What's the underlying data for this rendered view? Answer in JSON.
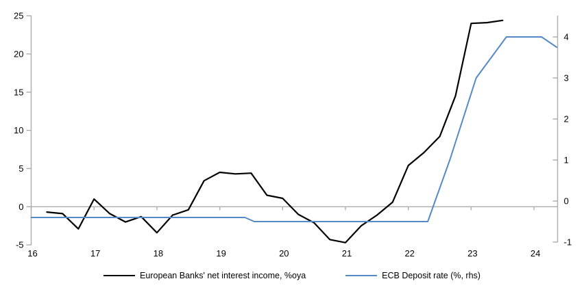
{
  "chart_data": {
    "type": "line",
    "title": "",
    "x_axis": {
      "tick_labels": [
        "16",
        "17",
        "18",
        "19",
        "20",
        "21",
        "22",
        "23",
        "24"
      ],
      "tick_values": [
        16,
        17,
        18,
        19,
        20,
        21,
        22,
        23,
        24
      ],
      "range": [
        16,
        24.38
      ]
    },
    "left_axis": {
      "tick_labels": [
        "25",
        "20",
        "15",
        "10",
        "5",
        "0",
        "-5"
      ],
      "tick_values": [
        25,
        20,
        15,
        10,
        5,
        0,
        -5
      ],
      "range": [
        -5,
        25
      ]
    },
    "right_axis": {
      "tick_labels": [
        "4",
        "3",
        "2",
        "1",
        "0",
        "-1"
      ],
      "tick_values": [
        4,
        3,
        2,
        1,
        0,
        -1
      ],
      "range": [
        -1,
        4.5
      ]
    },
    "grid": "off",
    "legend_position": "bottom",
    "series": [
      {
        "name": "European Banks' net interest income, %oya",
        "axis": "left",
        "color": "#000000",
        "stroke_width": 2.2,
        "x": [
          16.25,
          16.5,
          16.75,
          17.0,
          17.25,
          17.5,
          17.75,
          18.0,
          18.25,
          18.5,
          18.75,
          19.0,
          19.25,
          19.5,
          19.75,
          20.0,
          20.25,
          20.5,
          20.75,
          21.0,
          21.25,
          21.5,
          21.75,
          22.0,
          22.25,
          22.5,
          22.75,
          23.0,
          23.25,
          23.5
        ],
        "values": [
          -0.7,
          -0.9,
          -2.9,
          1.0,
          -0.9,
          -2.0,
          -1.3,
          -3.4,
          -1.1,
          -0.4,
          3.4,
          4.5,
          4.3,
          4.4,
          1.5,
          1.1,
          -1.0,
          -2.1,
          -4.3,
          -4.7,
          -2.5,
          -1.1,
          0.6,
          5.4,
          7.1,
          9.2,
          14.5,
          24.0,
          24.1,
          24.4
        ]
      },
      {
        "name": "ECB Deposit rate (%, rhs)",
        "axis": "right",
        "color": "#5488C7",
        "stroke_width": 2,
        "x": [
          16.0,
          19.4,
          19.55,
          22.31,
          22.66,
          23.08,
          23.56,
          24.12,
          24.36
        ],
        "values": [
          -0.4,
          -0.4,
          -0.5,
          -0.5,
          1.0,
          3.0,
          4.0,
          4.0,
          3.75
        ]
      }
    ],
    "axis_color": "#ABABAB"
  }
}
